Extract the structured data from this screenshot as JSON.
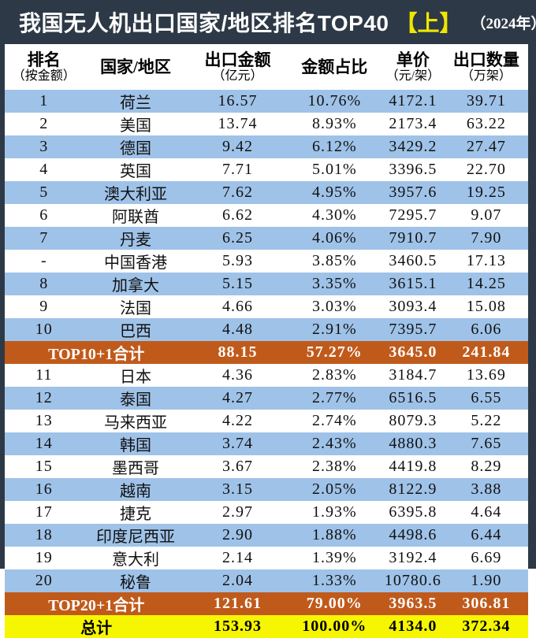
{
  "title": {
    "main": "我国无人机出口国家/地区排名TOP40",
    "highlight": "【上】",
    "year": "（2024年）"
  },
  "colors": {
    "frame_bg": "#2d3946",
    "title_text": "#ffffff",
    "title_highlight": "#f0e600",
    "row_blue": "#9fc2e8",
    "row_white": "#ffffff",
    "summary_bg": "#c05a1b",
    "summary_text": "#ffffff",
    "total_bg": "#f6f600",
    "total_text": "#000000"
  },
  "table": {
    "headers": [
      {
        "main": "排名",
        "sub": "（按金额）"
      },
      {
        "main": "国家/地区",
        "sub": ""
      },
      {
        "main": "出口金额",
        "sub": "（亿元）"
      },
      {
        "main": "金额占比",
        "sub": ""
      },
      {
        "main": "单价",
        "sub": "（元/架）"
      },
      {
        "main": "出口数量",
        "sub": "（万架）"
      }
    ],
    "rows": [
      {
        "type": "data",
        "shade": "blue",
        "rank": "1",
        "country": "荷兰",
        "amount": "16.57",
        "share": "10.76%",
        "price": "4172.1",
        "qty": "39.71"
      },
      {
        "type": "data",
        "shade": "white",
        "rank": "2",
        "country": "美国",
        "amount": "13.74",
        "share": "8.93%",
        "price": "2173.4",
        "qty": "63.22"
      },
      {
        "type": "data",
        "shade": "blue",
        "rank": "3",
        "country": "德国",
        "amount": "9.42",
        "share": "6.12%",
        "price": "3429.2",
        "qty": "27.47"
      },
      {
        "type": "data",
        "shade": "white",
        "rank": "4",
        "country": "英国",
        "amount": "7.71",
        "share": "5.01%",
        "price": "3396.5",
        "qty": "22.70"
      },
      {
        "type": "data",
        "shade": "blue",
        "rank": "5",
        "country": "澳大利亚",
        "amount": "7.62",
        "share": "4.95%",
        "price": "3957.6",
        "qty": "19.25"
      },
      {
        "type": "data",
        "shade": "white",
        "rank": "6",
        "country": "阿联酋",
        "amount": "6.62",
        "share": "4.30%",
        "price": "7295.7",
        "qty": "9.07"
      },
      {
        "type": "data",
        "shade": "blue",
        "rank": "7",
        "country": "丹麦",
        "amount": "6.25",
        "share": "4.06%",
        "price": "7910.7",
        "qty": "7.90"
      },
      {
        "type": "data",
        "shade": "white",
        "rank": "-",
        "country": "中国香港",
        "amount": "5.93",
        "share": "3.85%",
        "price": "3460.5",
        "qty": "17.13"
      },
      {
        "type": "data",
        "shade": "blue",
        "rank": "8",
        "country": "加拿大",
        "amount": "5.15",
        "share": "3.35%",
        "price": "3615.1",
        "qty": "14.25"
      },
      {
        "type": "data",
        "shade": "white",
        "rank": "9",
        "country": "法国",
        "amount": "4.66",
        "share": "3.03%",
        "price": "3093.4",
        "qty": "15.08"
      },
      {
        "type": "data",
        "shade": "blue",
        "rank": "10",
        "country": "巴西",
        "amount": "4.48",
        "share": "2.91%",
        "price": "7395.7",
        "qty": "6.06"
      },
      {
        "type": "summary",
        "label": "TOP10+1合计",
        "amount": "88.15",
        "share": "57.27%",
        "price": "3645.0",
        "qty": "241.84"
      },
      {
        "type": "data",
        "shade": "white",
        "rank": "11",
        "country": "日本",
        "amount": "4.36",
        "share": "2.83%",
        "price": "3184.7",
        "qty": "13.69"
      },
      {
        "type": "data",
        "shade": "blue",
        "rank": "12",
        "country": "泰国",
        "amount": "4.27",
        "share": "2.77%",
        "price": "6516.5",
        "qty": "6.55"
      },
      {
        "type": "data",
        "shade": "white",
        "rank": "13",
        "country": "马来西亚",
        "amount": "4.22",
        "share": "2.74%",
        "price": "8079.3",
        "qty": "5.22"
      },
      {
        "type": "data",
        "shade": "blue",
        "rank": "14",
        "country": "韩国",
        "amount": "3.74",
        "share": "2.43%",
        "price": "4880.3",
        "qty": "7.65"
      },
      {
        "type": "data",
        "shade": "white",
        "rank": "15",
        "country": "墨西哥",
        "amount": "3.67",
        "share": "2.38%",
        "price": "4419.8",
        "qty": "8.29"
      },
      {
        "type": "data",
        "shade": "blue",
        "rank": "16",
        "country": "越南",
        "amount": "3.15",
        "share": "2.05%",
        "price": "8122.9",
        "qty": "3.88"
      },
      {
        "type": "data",
        "shade": "white",
        "rank": "17",
        "country": "捷克",
        "amount": "2.97",
        "share": "1.93%",
        "price": "6395.8",
        "qty": "4.64"
      },
      {
        "type": "data",
        "shade": "blue",
        "rank": "18",
        "country": "印度尼西亚",
        "amount": "2.90",
        "share": "1.88%",
        "price": "4498.6",
        "qty": "6.44"
      },
      {
        "type": "data",
        "shade": "white",
        "rank": "19",
        "country": "意大利",
        "amount": "2.14",
        "share": "1.39%",
        "price": "3192.4",
        "qty": "6.69"
      },
      {
        "type": "data",
        "shade": "blue",
        "rank": "20",
        "country": "秘鲁",
        "amount": "2.04",
        "share": "1.33%",
        "price": "10780.6",
        "qty": "1.90"
      },
      {
        "type": "summary",
        "label": "TOP20+1合计",
        "amount": "121.61",
        "share": "79.00%",
        "price": "3963.5",
        "qty": "306.81"
      },
      {
        "type": "total",
        "label": "总计",
        "amount": "153.93",
        "share": "100.00%",
        "price": "4134.0",
        "qty": "372.34"
      }
    ]
  }
}
